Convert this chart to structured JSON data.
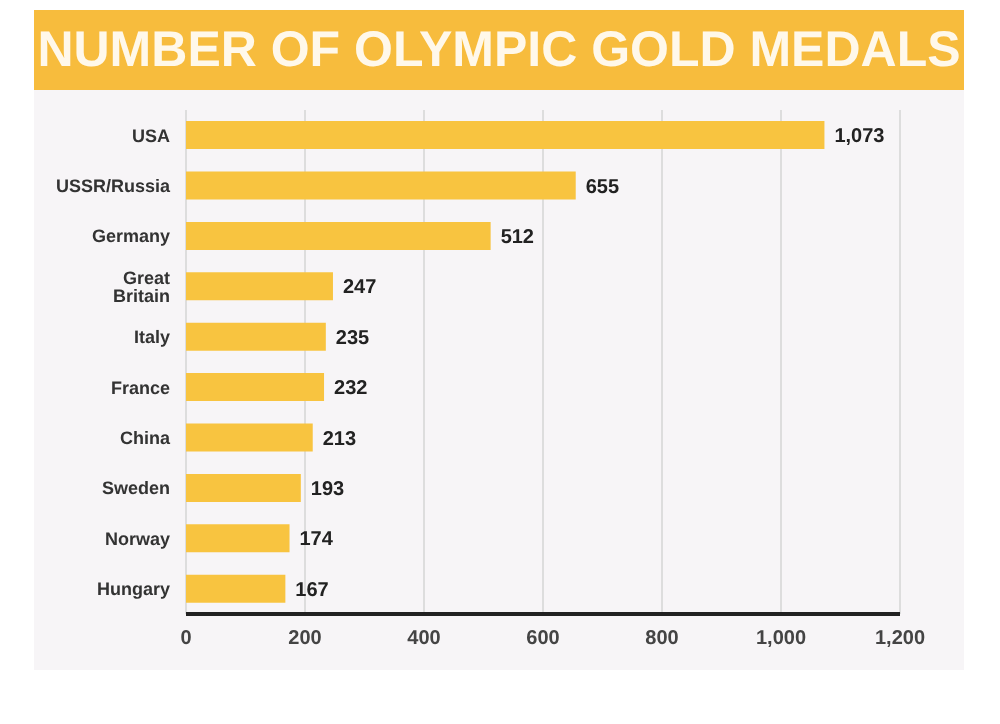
{
  "chart_data": {
    "type": "bar",
    "orientation": "horizontal",
    "title": "NUMBER OF OLYMPIC GOLD MEDALS",
    "categories": [
      "USA",
      "USSR/Russia",
      "Germany",
      "Great Britain",
      "Italy",
      "France",
      "China",
      "Sweden",
      "Norway",
      "Hungary"
    ],
    "values": [
      1073,
      655,
      512,
      247,
      235,
      232,
      213,
      193,
      174,
      167
    ],
    "value_labels": [
      "1,073",
      "655",
      "512",
      "247",
      "235",
      "232",
      "213",
      "193",
      "174",
      "167"
    ],
    "color": "#f8c440",
    "xlim": [
      0,
      1200
    ],
    "xticks": [
      0,
      200,
      400,
      600,
      800,
      {
        "value": 1000,
        "label": "1,000"
      },
      {
        "value": 1200,
        "label": "1,200"
      }
    ],
    "grid": "x"
  }
}
